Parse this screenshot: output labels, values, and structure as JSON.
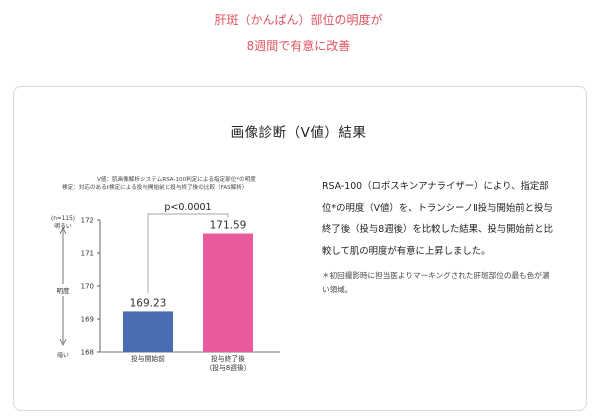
{
  "header": {
    "line1": "肝斑（かんぱん）部位の明度が",
    "line2": "8週間で有意に改善"
  },
  "section": {
    "title": "画像診断（V値）結果"
  },
  "chart_notes": {
    "line1": "V値：肌画像解析システムRSA-100判定による指定部位*の明度",
    "line2": "検定：対応のあるt検定による投与開始前と投与終了後の比較（FAS解析）"
  },
  "chart_data": {
    "type": "bar",
    "categories": [
      "投与開始前",
      "投与終了後\n（投与8週後）"
    ],
    "category_lines": [
      [
        "投与開始前"
      ],
      [
        "投与終了後",
        "（投与8週後）"
      ]
    ],
    "values": [
      169.23,
      171.59
    ],
    "value_labels": [
      "169.23",
      "171.59"
    ],
    "colors": [
      "#4a6cb3",
      "#e85a9b"
    ],
    "ylim": [
      168,
      172
    ],
    "yticks": [
      168,
      169,
      170,
      171,
      172
    ],
    "ytick_labels": [
      "168",
      "169",
      "170",
      "171",
      "172"
    ],
    "ylabel": "明度",
    "n_label": "(n=115)",
    "top_label": "明るい",
    "bottom_label": "暗い",
    "significance": "p<0.0001"
  },
  "description": "RSA-100（ロボスキンアナライザー）により、指定部位*の明度（V値）を、トランシーノⅡ投与開始前と投与終了後（投与8週後）を比較した結果、投与開始前と比較して肌の明度が有意に上昇しました。",
  "footnote": "＊初回撮影時に担当医よりマーキングされた肝斑部位の最も色が濃い領域。"
}
